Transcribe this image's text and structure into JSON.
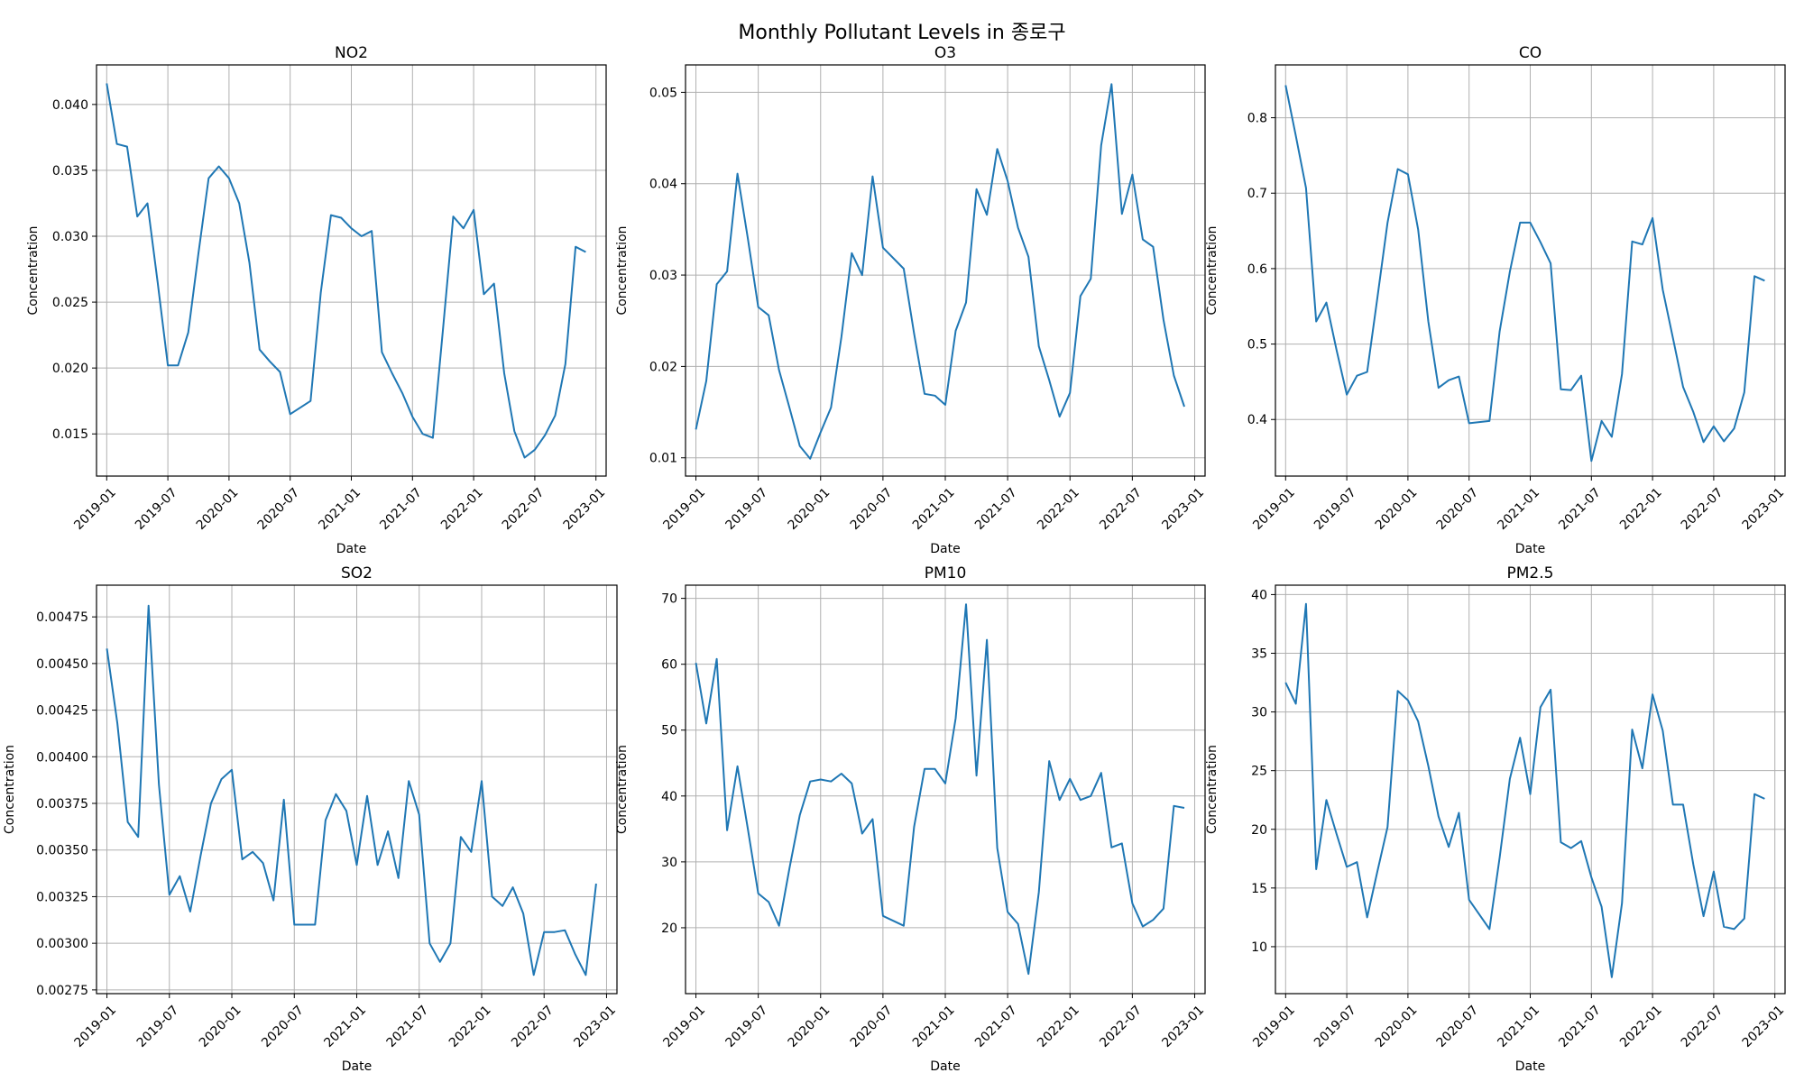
{
  "figure": {
    "suptitle": "Monthly Pollutant Levels in 종로구",
    "line_color": "#1f77b4",
    "grid": true
  },
  "x_ticks": [
    "2019-01",
    "2019-07",
    "2020-01",
    "2020-07",
    "2021-01",
    "2021-07",
    "2022-01",
    "2022-07",
    "2023-01"
  ],
  "chart_data": [
    {
      "type": "line",
      "title": "NO2",
      "xlabel": "Date",
      "ylabel": "Concentration",
      "xlim": [
        "2018-12",
        "2023-02"
      ],
      "ylim": [
        0.0118,
        0.043
      ],
      "yticks": [
        "0.015",
        "0.020",
        "0.025",
        "0.030",
        "0.035",
        "0.040"
      ],
      "series": [
        {
          "x": [
            "2019-01",
            "2019-02",
            "2019-03",
            "2019-04",
            "2019-05",
            "2019-06",
            "2019-07",
            "2019-08",
            "2019-09",
            "2019-10",
            "2019-11",
            "2019-12",
            "2020-01",
            "2020-02",
            "2020-03",
            "2020-04",
            "2020-05",
            "2020-06",
            "2020-07",
            "2020-09",
            "2020-10",
            "2020-11",
            "2020-12",
            "2021-01",
            "2021-02",
            "2021-03",
            "2021-04",
            "2021-05",
            "2021-06",
            "2021-07",
            "2021-08",
            "2021-09",
            "2021-10",
            "2021-11",
            "2021-12",
            "2022-01",
            "2022-02",
            "2022-03",
            "2022-04",
            "2022-05",
            "2022-06",
            "2022-07",
            "2022-08",
            "2022-09",
            "2022-10",
            "2022-11",
            "2022-12"
          ],
          "values": [
            0.0416,
            0.037,
            0.0368,
            0.0315,
            0.0325,
            0.0265,
            0.0202,
            0.0202,
            0.0227,
            0.0287,
            0.0344,
            0.0353,
            0.0344,
            0.0325,
            0.028,
            0.0214,
            0.0205,
            0.0197,
            0.0165,
            0.0175,
            0.0257,
            0.0316,
            0.0314,
            0.0306,
            0.03,
            0.0304,
            0.0212,
            0.0196,
            0.0181,
            0.0163,
            0.015,
            0.0147,
            0.023,
            0.0315,
            0.0306,
            0.032,
            0.0256,
            0.0264,
            0.0196,
            0.0152,
            0.0132,
            0.0138,
            0.0149,
            0.0164,
            0.0203,
            0.0292,
            0.0288
          ]
        }
      ]
    },
    {
      "type": "line",
      "title": "O3",
      "xlabel": "Date",
      "ylabel": "Concentration",
      "xlim": [
        "2018-12",
        "2023-02"
      ],
      "ylim": [
        0.008,
        0.053
      ],
      "yticks": [
        "0.01",
        "0.02",
        "0.03",
        "0.04",
        "0.05"
      ],
      "series": [
        {
          "x": [
            "2019-01",
            "2019-02",
            "2019-03",
            "2019-04",
            "2019-05",
            "2019-06",
            "2019-07",
            "2019-08",
            "2019-09",
            "2019-10",
            "2019-11",
            "2019-12",
            "2020-01",
            "2020-02",
            "2020-03",
            "2020-04",
            "2020-05",
            "2020-06",
            "2020-07",
            "2020-09",
            "2020-10",
            "2020-11",
            "2020-12",
            "2021-01",
            "2021-02",
            "2021-03",
            "2021-04",
            "2021-05",
            "2021-06",
            "2021-07",
            "2021-08",
            "2021-09",
            "2021-10",
            "2021-11",
            "2021-12",
            "2022-01",
            "2022-02",
            "2022-03",
            "2022-04",
            "2022-05",
            "2022-06",
            "2022-07",
            "2022-08",
            "2022-09",
            "2022-10",
            "2022-11",
            "2022-12"
          ],
          "values": [
            0.0131,
            0.0184,
            0.029,
            0.0304,
            0.0411,
            0.034,
            0.0265,
            0.0256,
            0.0196,
            0.0155,
            0.0113,
            0.0099,
            0.0128,
            0.0155,
            0.0232,
            0.0324,
            0.03,
            0.0408,
            0.033,
            0.0307,
            0.0236,
            0.017,
            0.0168,
            0.0158,
            0.0239,
            0.027,
            0.0394,
            0.0366,
            0.0438,
            0.0403,
            0.0352,
            0.032,
            0.0222,
            0.0185,
            0.0145,
            0.0171,
            0.0277,
            0.0296,
            0.0442,
            0.0509,
            0.0367,
            0.041,
            0.0339,
            0.0331,
            0.0251,
            0.019,
            0.0156
          ]
        }
      ]
    },
    {
      "type": "line",
      "title": "CO",
      "xlabel": "Date",
      "ylabel": "Concentration",
      "xlim": [
        "2018-12",
        "2023-02"
      ],
      "ylim": [
        0.325,
        0.87
      ],
      "yticks": [
        "0.4",
        "0.5",
        "0.6",
        "0.7",
        "0.8"
      ],
      "series": [
        {
          "x": [
            "2019-01",
            "2019-02",
            "2019-03",
            "2019-04",
            "2019-05",
            "2019-06",
            "2019-07",
            "2019-08",
            "2019-09",
            "2019-10",
            "2019-11",
            "2019-12",
            "2020-01",
            "2020-02",
            "2020-03",
            "2020-04",
            "2020-05",
            "2020-06",
            "2020-07",
            "2020-09",
            "2020-10",
            "2020-11",
            "2020-12",
            "2021-01",
            "2021-02",
            "2021-03",
            "2021-04",
            "2021-05",
            "2021-06",
            "2021-07",
            "2021-08",
            "2021-09",
            "2021-10",
            "2021-11",
            "2021-12",
            "2022-01",
            "2022-02",
            "2022-03",
            "2022-04",
            "2022-05",
            "2022-06",
            "2022-07",
            "2022-08",
            "2022-09",
            "2022-10",
            "2022-11",
            "2022-12"
          ],
          "values": [
            0.843,
            0.776,
            0.707,
            0.53,
            0.555,
            0.492,
            0.433,
            0.458,
            0.463,
            0.561,
            0.661,
            0.732,
            0.725,
            0.652,
            0.53,
            0.442,
            0.452,
            0.457,
            0.395,
            0.398,
            0.517,
            0.596,
            0.661,
            0.661,
            0.635,
            0.607,
            0.44,
            0.439,
            0.458,
            0.345,
            0.398,
            0.377,
            0.46,
            0.636,
            0.632,
            0.667,
            0.572,
            0.508,
            0.443,
            0.41,
            0.37,
            0.391,
            0.371,
            0.388,
            0.436,
            0.59,
            0.584
          ]
        }
      ]
    },
    {
      "type": "line",
      "title": "SO2",
      "xlabel": "Date",
      "ylabel": "Concentration",
      "xlim": [
        "2018-12",
        "2023-02"
      ],
      "ylim": [
        0.00273,
        0.00492
      ],
      "yticks": [
        "0.00275",
        "0.00300",
        "0.00325",
        "0.00350",
        "0.00375",
        "0.00400",
        "0.00425",
        "0.00450",
        "0.00475"
      ],
      "series": [
        {
          "x": [
            "2019-01",
            "2019-02",
            "2019-03",
            "2019-04",
            "2019-05",
            "2019-06",
            "2019-07",
            "2019-08",
            "2019-09",
            "2019-10",
            "2019-11",
            "2019-12",
            "2020-01",
            "2020-02",
            "2020-03",
            "2020-04",
            "2020-05",
            "2020-06",
            "2020-07",
            "2020-09",
            "2020-10",
            "2020-11",
            "2020-12",
            "2021-01",
            "2021-02",
            "2021-03",
            "2021-04",
            "2021-05",
            "2021-06",
            "2021-07",
            "2021-08",
            "2021-09",
            "2021-10",
            "2021-11",
            "2021-12",
            "2022-01",
            "2022-02",
            "2022-03",
            "2022-04",
            "2022-05",
            "2022-06",
            "2022-07",
            "2022-08",
            "2022-09",
            "2022-10",
            "2022-11",
            "2022-12"
          ],
          "values": [
            0.00458,
            0.00418,
            0.00365,
            0.00357,
            0.00481,
            0.00385,
            0.00326,
            0.00336,
            0.00317,
            0.00347,
            0.00375,
            0.00388,
            0.00393,
            0.00345,
            0.00349,
            0.00343,
            0.00323,
            0.00377,
            0.0031,
            0.0031,
            0.00366,
            0.0038,
            0.00371,
            0.00342,
            0.00379,
            0.00342,
            0.0036,
            0.00335,
            0.00387,
            0.00369,
            0.003,
            0.0029,
            0.003,
            0.00357,
            0.00349,
            0.00387,
            0.00325,
            0.0032,
            0.0033,
            0.00316,
            0.00283,
            0.00306,
            0.00306,
            0.00307,
            0.00294,
            0.00283,
            0.00332
          ]
        }
      ]
    },
    {
      "type": "line",
      "title": "PM10",
      "xlabel": "Date",
      "ylabel": "Concentration",
      "xlim": [
        "2018-12",
        "2023-02"
      ],
      "ylim": [
        10.0,
        72.0
      ],
      "yticks": [
        "20",
        "30",
        "40",
        "50",
        "60",
        "70"
      ],
      "series": [
        {
          "x": [
            "2019-01",
            "2019-02",
            "2019-03",
            "2019-04",
            "2019-05",
            "2019-06",
            "2019-07",
            "2019-08",
            "2019-09",
            "2019-10",
            "2019-11",
            "2019-12",
            "2020-01",
            "2020-02",
            "2020-03",
            "2020-04",
            "2020-05",
            "2020-06",
            "2020-07",
            "2020-09",
            "2020-10",
            "2020-11",
            "2020-12",
            "2021-01",
            "2021-02",
            "2021-03",
            "2021-04",
            "2021-05",
            "2021-06",
            "2021-07",
            "2021-08",
            "2021-09",
            "2021-10",
            "2021-11",
            "2021-12",
            "2022-01",
            "2022-02",
            "2022-03",
            "2022-04",
            "2022-05",
            "2022-06",
            "2022-07",
            "2022-08",
            "2022-09",
            "2022-10",
            "2022-11",
            "2022-12"
          ],
          "values": [
            60.2,
            51.0,
            60.8,
            34.8,
            44.5,
            35.0,
            25.2,
            23.9,
            20.3,
            29.0,
            37.1,
            42.2,
            42.5,
            42.2,
            43.4,
            41.9,
            34.3,
            36.5,
            21.8,
            20.3,
            35.3,
            44.1,
            44.1,
            41.9,
            51.8,
            69.1,
            43.1,
            63.7,
            32.1,
            22.4,
            20.6,
            13.0,
            25.4,
            45.3,
            39.4,
            42.6,
            39.4,
            40.0,
            43.5,
            32.2,
            32.8,
            23.7,
            20.2,
            21.2,
            22.9,
            38.5,
            38.2
          ]
        }
      ]
    },
    {
      "type": "line",
      "title": "PM2.5",
      "xlabel": "Date",
      "ylabel": "Concentration",
      "xlim": [
        "2018-12",
        "2023-02"
      ],
      "ylim": [
        6.0,
        40.8
      ],
      "yticks": [
        "10",
        "15",
        "20",
        "25",
        "30",
        "35",
        "40"
      ],
      "series": [
        {
          "x": [
            "2019-01",
            "2019-02",
            "2019-03",
            "2019-04",
            "2019-05",
            "2019-06",
            "2019-07",
            "2019-08",
            "2019-09",
            "2019-10",
            "2019-11",
            "2019-12",
            "2020-01",
            "2020-02",
            "2020-03",
            "2020-04",
            "2020-05",
            "2020-06",
            "2020-07",
            "2020-09",
            "2020-10",
            "2020-11",
            "2020-12",
            "2021-01",
            "2021-02",
            "2021-03",
            "2021-04",
            "2021-05",
            "2021-06",
            "2021-07",
            "2021-08",
            "2021-09",
            "2021-10",
            "2021-11",
            "2021-12",
            "2022-01",
            "2022-02",
            "2022-03",
            "2022-04",
            "2022-05",
            "2022-06",
            "2022-07",
            "2022-08",
            "2022-09",
            "2022-10",
            "2022-11",
            "2022-12"
          ],
          "values": [
            32.5,
            30.7,
            39.2,
            16.6,
            22.5,
            19.6,
            16.8,
            17.2,
            12.5,
            16.4,
            20.2,
            31.8,
            31.0,
            29.2,
            25.4,
            21.1,
            18.5,
            21.4,
            14.0,
            11.5,
            17.6,
            24.3,
            27.8,
            23.0,
            30.4,
            31.9,
            18.9,
            18.4,
            19.0,
            15.9,
            13.4,
            7.4,
            13.7,
            28.5,
            25.2,
            31.5,
            28.4,
            22.1,
            22.1,
            17.0,
            12.6,
            16.4,
            11.7,
            11.5,
            12.4,
            23.0,
            22.6
          ]
        }
      ]
    }
  ]
}
